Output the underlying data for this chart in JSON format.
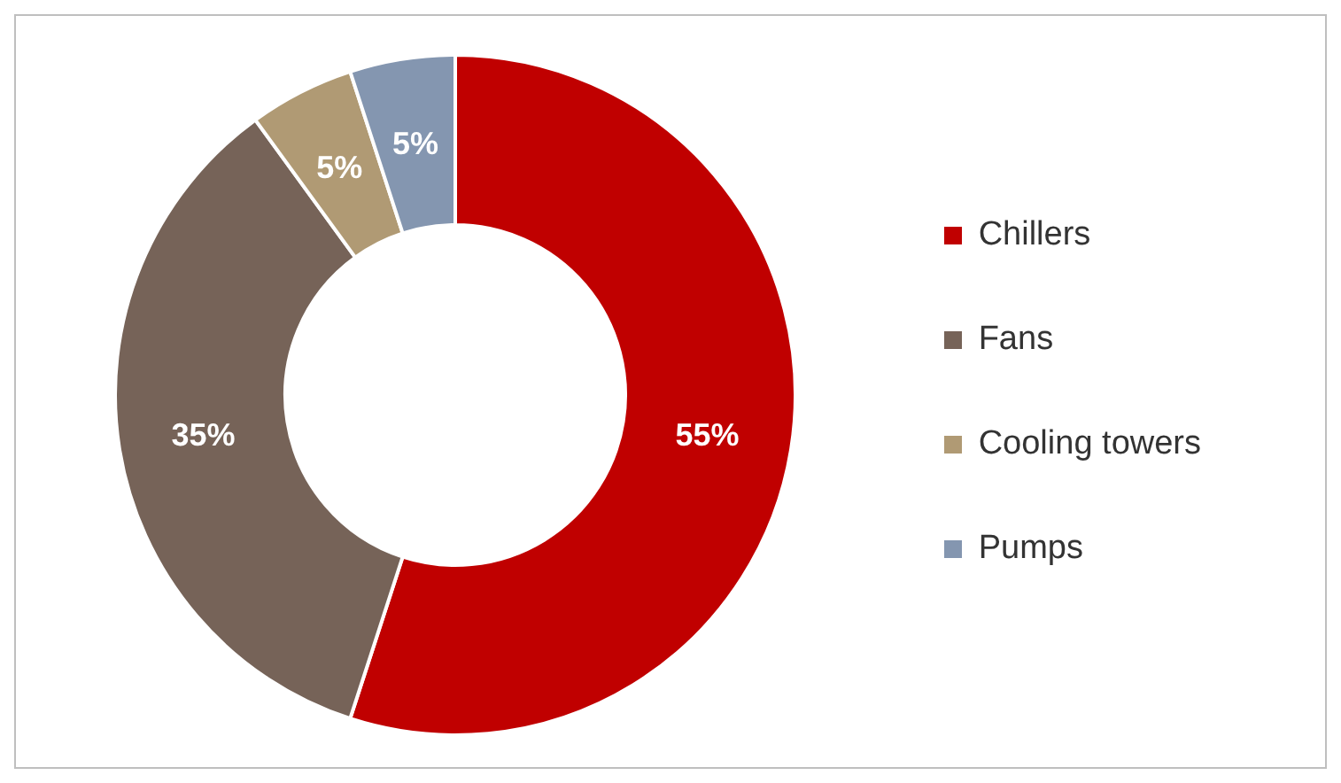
{
  "chart_data": {
    "type": "donut",
    "categories": [
      "Chillers",
      "Fans",
      "Cooling towers",
      "Pumps"
    ],
    "values": [
      55,
      35,
      5,
      5
    ],
    "colors": [
      "#c00000",
      "#766358",
      "#b09a74",
      "#8496b0"
    ],
    "value_labels": [
      "55%",
      "35%",
      "5%",
      "5%"
    ],
    "legend": "right"
  }
}
